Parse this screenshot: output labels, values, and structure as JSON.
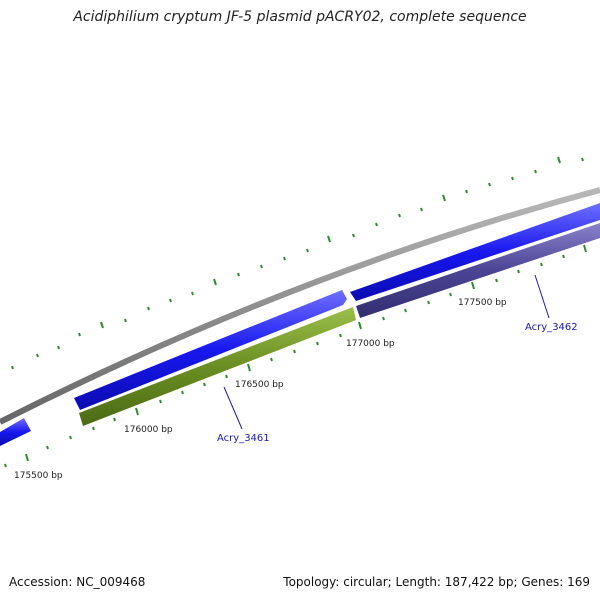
{
  "title": "Acidiphilium cryptum JF-5 plasmid pACRY02, complete sequence",
  "footer": {
    "accession": "Accession: NC_009468",
    "summary": "Topology: circular; Length: 187,422 bp; Genes: 169"
  },
  "colors": {
    "backbone": "#888888",
    "forward_gene": "#1a1aee",
    "reverse_gene_a": "#6b8e23",
    "reverse_gene_b": "#4b4494",
    "tick": "#2e8b2e",
    "gene_label": "#1a1aaa",
    "leader_line": "#1a1aaa"
  },
  "position_labels": [
    "175500 bp",
    "176000 bp",
    "176500 bp",
    "177000 bp",
    "177500 bp"
  ],
  "gene_labels": [
    "Acry_3461",
    "Acry_3462"
  ]
}
